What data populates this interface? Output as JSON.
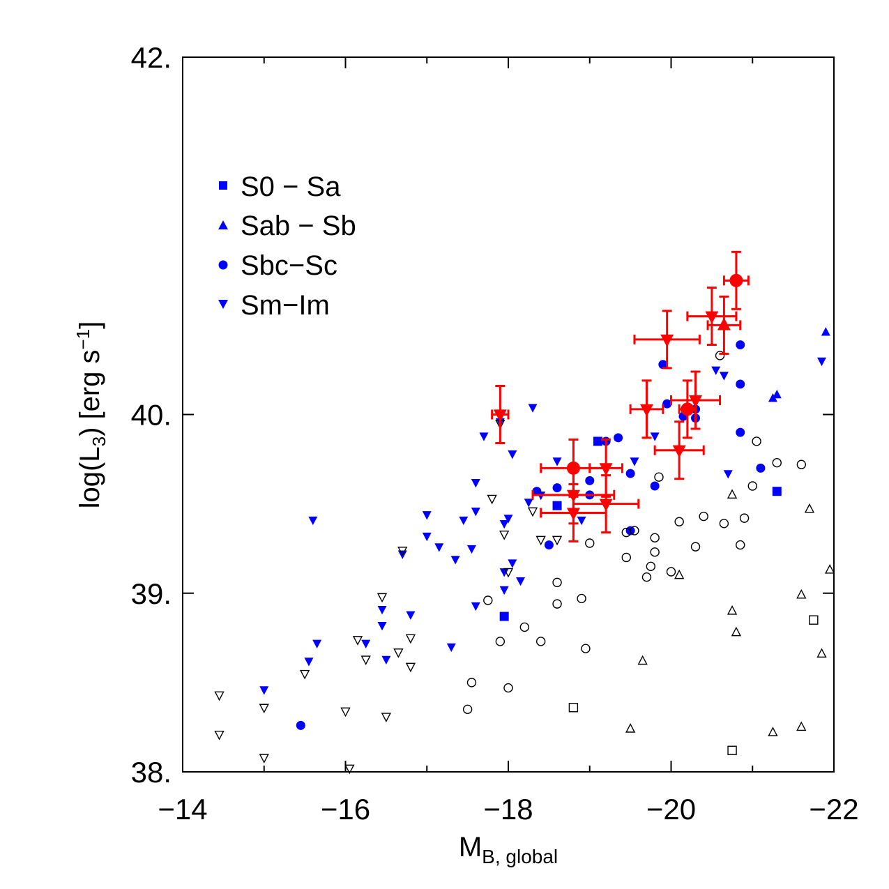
{
  "chart_data": {
    "type": "scatter",
    "xlim": [
      -14,
      -22
    ],
    "ylim": [
      38,
      42
    ],
    "x_ticks": [
      {
        "value": -14,
        "label": "−14"
      },
      {
        "value": -16,
        "label": "−16"
      },
      {
        "value": -18,
        "label": "−18"
      },
      {
        "value": -20,
        "label": "−20"
      },
      {
        "value": -22,
        "label": "−22"
      }
    ],
    "y_ticks": [
      {
        "value": 38,
        "label": "38."
      },
      {
        "value": 39,
        "label": "39."
      },
      {
        "value": 40,
        "label": "40."
      },
      {
        "value": 42,
        "label": "42."
      }
    ],
    "xlabel": {
      "main": "M",
      "sub": "B, global"
    },
    "ylabel": {
      "prefix": "log(L",
      "sub": "3",
      "middle": ") [erg s",
      "sup": "−1",
      "suffix": "]"
    },
    "legend": {
      "placement": "upper-left",
      "entries": [
        {
          "label": "S0 − Sa",
          "marker": "square"
        },
        {
          "label": "Sab − Sb",
          "marker": "triangle-up"
        },
        {
          "label": "Sbc−Sc",
          "marker": "circle"
        },
        {
          "label": "Sm−Im",
          "marker": "triangle-down"
        }
      ]
    },
    "colors": {
      "filled": "#0000ff",
      "highlight": "#ff0000",
      "open": "#000000"
    },
    "series": [
      {
        "marker": "square",
        "style": "filled",
        "points": [
          [
            -18.6,
            39.49
          ],
          [
            -19.1,
            39.85
          ],
          [
            -17.95,
            38.87
          ],
          [
            -21.3,
            39.57
          ]
        ]
      },
      {
        "marker": "triangle-up",
        "style": "filled",
        "points": [
          [
            -21.25,
            40.09
          ],
          [
            -21.3,
            40.11
          ],
          [
            -21.9,
            40.46
          ]
        ]
      },
      {
        "marker": "circle",
        "style": "filled",
        "points": [
          [
            -15.45,
            38.26
          ],
          [
            -18.5,
            39.27
          ],
          [
            -18.6,
            39.59
          ],
          [
            -18.35,
            39.57
          ],
          [
            -19.0,
            39.55
          ],
          [
            -19.0,
            39.63
          ],
          [
            -19.5,
            39.35
          ],
          [
            -19.5,
            39.67
          ],
          [
            -19.2,
            39.85
          ],
          [
            -19.35,
            39.87
          ],
          [
            -19.8,
            39.6
          ],
          [
            -19.9,
            40.28
          ],
          [
            -19.95,
            40.06
          ],
          [
            -20.15,
            39.99
          ],
          [
            -20.3,
            39.98
          ],
          [
            -20.3,
            40.03
          ],
          [
            -20.85,
            40.39
          ],
          [
            -20.85,
            40.17
          ],
          [
            -20.85,
            39.9
          ],
          [
            -21.1,
            39.7
          ]
        ]
      },
      {
        "marker": "triangle-down",
        "style": "filled",
        "points": [
          [
            -15.0,
            38.46
          ],
          [
            -15.55,
            38.62
          ],
          [
            -15.65,
            38.72
          ],
          [
            -15.6,
            39.41
          ],
          [
            -16.25,
            38.72
          ],
          [
            -16.45,
            38.82
          ],
          [
            -16.45,
            38.91
          ],
          [
            -16.5,
            38.63
          ],
          [
            -16.7,
            39.22
          ],
          [
            -16.8,
            38.88
          ],
          [
            -17.0,
            39.44
          ],
          [
            -17.0,
            39.32
          ],
          [
            -17.15,
            39.26
          ],
          [
            -17.3,
            38.7
          ],
          [
            -17.35,
            39.19
          ],
          [
            -17.45,
            39.41
          ],
          [
            -17.55,
            39.25
          ],
          [
            -17.6,
            39.46
          ],
          [
            -17.6,
            39.62
          ],
          [
            -17.6,
            38.93
          ],
          [
            -17.7,
            39.88
          ],
          [
            -17.9,
            39.96
          ],
          [
            -17.95,
            39.12
          ],
          [
            -17.95,
            39.02
          ],
          [
            -17.95,
            39.39
          ],
          [
            -18.0,
            39.42
          ],
          [
            -18.05,
            39.17
          ],
          [
            -18.05,
            39.78
          ],
          [
            -18.15,
            39.07
          ],
          [
            -18.25,
            39.51
          ],
          [
            -18.3,
            40.04
          ],
          [
            -18.4,
            39.55
          ],
          [
            -18.6,
            39.74
          ],
          [
            -18.8,
            39.45
          ],
          [
            -18.9,
            39.41
          ],
          [
            -19.55,
            39.74
          ],
          [
            -19.8,
            39.88
          ],
          [
            -20.7,
            39.67
          ],
          [
            -20.65,
            40.22
          ],
          [
            -20.55,
            40.25
          ],
          [
            -21.85,
            40.3
          ]
        ]
      },
      {
        "marker": "square",
        "style": "open",
        "points": [
          [
            -18.8,
            38.36
          ],
          [
            -20.75,
            38.12
          ],
          [
            -21.75,
            38.85
          ]
        ]
      },
      {
        "marker": "triangle-up",
        "style": "open",
        "points": [
          [
            -19.5,
            38.24
          ],
          [
            -19.65,
            38.62
          ],
          [
            -20.1,
            39.1
          ],
          [
            -20.75,
            39.55
          ],
          [
            -20.75,
            38.9
          ],
          [
            -20.8,
            38.78
          ],
          [
            -21.25,
            38.22
          ],
          [
            -21.6,
            38.99
          ],
          [
            -21.6,
            38.25
          ],
          [
            -21.7,
            39.47
          ],
          [
            -21.85,
            38.66
          ],
          [
            -21.95,
            39.13
          ]
        ]
      },
      {
        "marker": "circle",
        "style": "open",
        "points": [
          [
            -17.5,
            38.35
          ],
          [
            -17.55,
            38.5
          ],
          [
            -17.75,
            38.96
          ],
          [
            -17.9,
            38.73
          ],
          [
            -18.0,
            38.47
          ],
          [
            -18.2,
            38.81
          ],
          [
            -18.4,
            38.73
          ],
          [
            -18.6,
            38.94
          ],
          [
            -18.6,
            39.06
          ],
          [
            -18.9,
            38.97
          ],
          [
            -18.95,
            38.69
          ],
          [
            -19.0,
            39.28
          ],
          [
            -19.45,
            39.2
          ],
          [
            -19.45,
            39.34
          ],
          [
            -19.55,
            39.35
          ],
          [
            -19.7,
            39.09
          ],
          [
            -19.75,
            39.15
          ],
          [
            -19.8,
            39.23
          ],
          [
            -19.8,
            39.31
          ],
          [
            -19.85,
            39.65
          ],
          [
            -20.0,
            39.12
          ],
          [
            -20.1,
            39.4
          ],
          [
            -20.3,
            39.26
          ],
          [
            -20.4,
            39.43
          ],
          [
            -20.65,
            39.39
          ],
          [
            -20.85,
            39.27
          ],
          [
            -20.9,
            39.42
          ],
          [
            -21.0,
            39.6
          ],
          [
            -21.05,
            39.85
          ],
          [
            -21.3,
            39.73
          ],
          [
            -21.6,
            39.72
          ],
          [
            -20.6,
            40.33
          ]
        ]
      },
      {
        "marker": "triangle-down",
        "style": "open",
        "points": [
          [
            -14.45,
            38.43
          ],
          [
            -14.45,
            38.21
          ],
          [
            -15.0,
            38.36
          ],
          [
            -15.0,
            38.08
          ],
          [
            -15.5,
            38.55
          ],
          [
            -16.0,
            38.34
          ],
          [
            -16.05,
            38.02
          ],
          [
            -16.15,
            38.74
          ],
          [
            -16.25,
            38.63
          ],
          [
            -16.45,
            38.98
          ],
          [
            -16.5,
            38.31
          ],
          [
            -16.65,
            38.67
          ],
          [
            -16.7,
            39.24
          ],
          [
            -16.8,
            38.59
          ],
          [
            -16.8,
            38.75
          ],
          [
            -17.8,
            39.53
          ],
          [
            -17.9,
            39.95
          ],
          [
            -17.95,
            39.33
          ],
          [
            -18.0,
            39.12
          ],
          [
            -18.3,
            39.46
          ],
          [
            -18.4,
            39.3
          ],
          [
            -18.6,
            39.3
          ]
        ]
      }
    ],
    "highlighted": {
      "color": "#ff0000",
      "points": [
        {
          "marker": "circle",
          "x": -20.8,
          "y": 40.75,
          "xerr": 0.15,
          "yerr": 0.16
        },
        {
          "marker": "triangle-down",
          "x": -20.5,
          "y": 40.55,
          "xerr": 0.3,
          "yerr": 0.16
        },
        {
          "marker": "triangle-up",
          "x": -20.65,
          "y": 40.5,
          "xerr": 0.2,
          "yerr": 0.16
        },
        {
          "marker": "triangle-down",
          "x": -19.95,
          "y": 40.42,
          "xerr": 0.4,
          "yerr": 0.16
        },
        {
          "marker": "triangle-down",
          "x": -20.3,
          "y": 40.08,
          "xerr": 0.3,
          "yerr": 0.16
        },
        {
          "marker": "circle",
          "x": -20.2,
          "y": 40.03,
          "xerr": 0.1,
          "yerr": 0.16
        },
        {
          "marker": "triangle-down",
          "x": -19.7,
          "y": 40.03,
          "xerr": 0.2,
          "yerr": 0.16
        },
        {
          "marker": "triangle-down",
          "x": -17.9,
          "y": 40.0,
          "xerr": 0.1,
          "yerr": 0.16
        },
        {
          "marker": "triangle-down",
          "x": -20.1,
          "y": 39.8,
          "xerr": 0.3,
          "yerr": 0.16
        },
        {
          "marker": "circle",
          "x": -18.8,
          "y": 39.7,
          "xerr": 0.4,
          "yerr": 0.16
        },
        {
          "marker": "triangle-down",
          "x": -19.2,
          "y": 39.7,
          "xerr": 0.2,
          "yerr": 0.16
        },
        {
          "marker": "triangle-down",
          "x": -18.8,
          "y": 39.55,
          "xerr": 0.5,
          "yerr": 0.16
        },
        {
          "marker": "triangle-down",
          "x": -19.2,
          "y": 39.5,
          "xerr": 0.4,
          "yerr": 0.16
        },
        {
          "marker": "triangle-down",
          "x": -18.8,
          "y": 39.45,
          "xerr": 0.4,
          "yerr": 0.16
        }
      ]
    }
  }
}
